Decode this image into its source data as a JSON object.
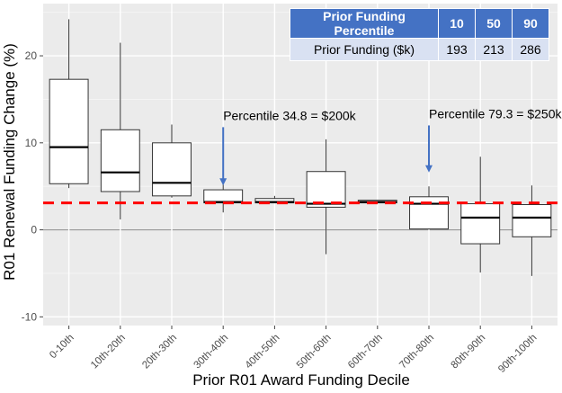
{
  "chart_data": {
    "type": "box",
    "title": "",
    "xlabel": "Prior R01 Award Funding Decile",
    "ylabel": "R01 Renewal Funding Change (%)",
    "ylim": [
      -11,
      26
    ],
    "yticks": [
      -10,
      0,
      10,
      20
    ],
    "grid": true,
    "categories": [
      "0-10th",
      "10th-20th",
      "20th-30th",
      "30th-40th",
      "40th-50th",
      "50th-60th",
      "60th-70th",
      "70th-80th",
      "80th-90th",
      "90th-100th"
    ],
    "boxes": [
      {
        "whisker_low": 4.8,
        "q1": 5.3,
        "median": 9.5,
        "q3": 17.3,
        "whisker_high": 24.2
      },
      {
        "whisker_low": 1.2,
        "q1": 4.4,
        "median": 6.6,
        "q3": 11.5,
        "whisker_high": 21.5
      },
      {
        "whisker_low": 3.7,
        "q1": 3.9,
        "median": 5.4,
        "q3": 10.0,
        "whisker_high": 12.1
      },
      {
        "whisker_low": 2.0,
        "q1": 3.1,
        "median": 3.2,
        "q3": 4.6,
        "whisker_high": 6.6
      },
      {
        "whisker_low": 3.1,
        "q1": 3.1,
        "median": 3.2,
        "q3": 3.6,
        "whisker_high": 3.9
      },
      {
        "whisker_low": -2.8,
        "q1": 2.6,
        "median": 3.0,
        "q3": 6.7,
        "whisker_high": 10.4
      },
      {
        "whisker_low": 3.1,
        "q1": 3.1,
        "median": 3.2,
        "q3": 3.4,
        "whisker_high": 3.4
      },
      {
        "whisker_low": 0.1,
        "q1": 0.1,
        "median": 3.0,
        "q3": 3.8,
        "whisker_high": 5.0
      },
      {
        "whisker_low": -4.9,
        "q1": -1.6,
        "median": 1.4,
        "q3": 3.0,
        "whisker_high": 8.4
      },
      {
        "whisker_low": -5.3,
        "q1": -0.8,
        "median": 1.4,
        "q3": 2.9,
        "whisker_high": 5.1
      }
    ],
    "reference_line": {
      "y": 3.1,
      "color": "#ff0000",
      "style": "dashed"
    },
    "annotations": [
      {
        "text": "Percentile 34.8 = $200k",
        "arrow_category_index": 3,
        "arrow_from_y": 11.8,
        "arrow_to_y": 5.1
      },
      {
        "text": "Percentile 79.3 = $250k",
        "arrow_category_index": 7,
        "arrow_from_y": 12.0,
        "arrow_to_y": 6.6
      }
    ],
    "arrow_color": "#4472c4",
    "panel_color": "#ebebeb",
    "inset_table": {
      "header": [
        "Prior Funding Percentile",
        "10",
        "50",
        "90"
      ],
      "row": [
        "Prior Funding ($k)",
        "193",
        "213",
        "286"
      ],
      "header_color": "#4472c4",
      "row_color": "#d9e1f2"
    }
  }
}
